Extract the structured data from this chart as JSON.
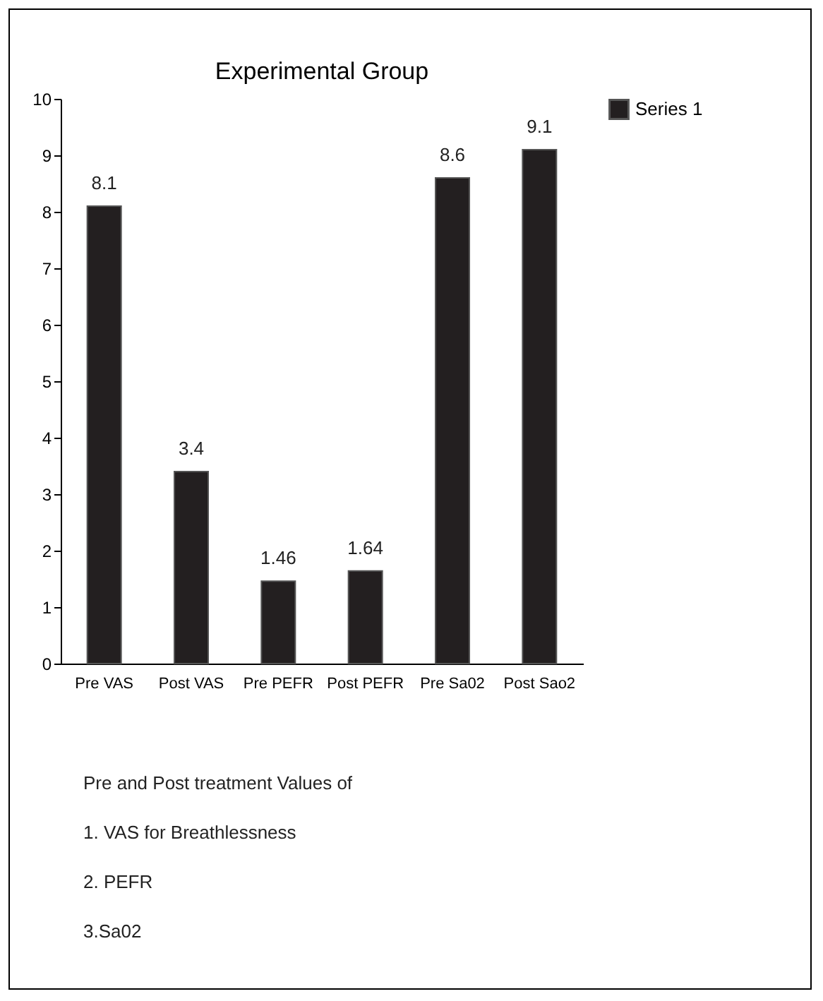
{
  "chart_data": {
    "type": "bar",
    "title": "Experimental Group",
    "categories": [
      "Pre VAS",
      "Post VAS",
      "Pre PEFR",
      "Post PEFR",
      "Pre Sa02",
      "Post Sao2"
    ],
    "series": [
      {
        "name": "Series 1",
        "color": "#231f20",
        "values": [
          8.1,
          3.4,
          1.46,
          1.64,
          8.6,
          9.1
        ]
      }
    ],
    "ylim": [
      0,
      10
    ],
    "yticks": [
      0,
      1,
      2,
      3,
      4,
      5,
      6,
      7,
      8,
      9,
      10
    ],
    "grid": false,
    "legend": "right",
    "data_labels": true,
    "annotations": [
      "Pre and Post treatment Values of",
      "1. VAS for Breathlessness",
      "2. PEFR",
      "3.Sa02"
    ]
  }
}
